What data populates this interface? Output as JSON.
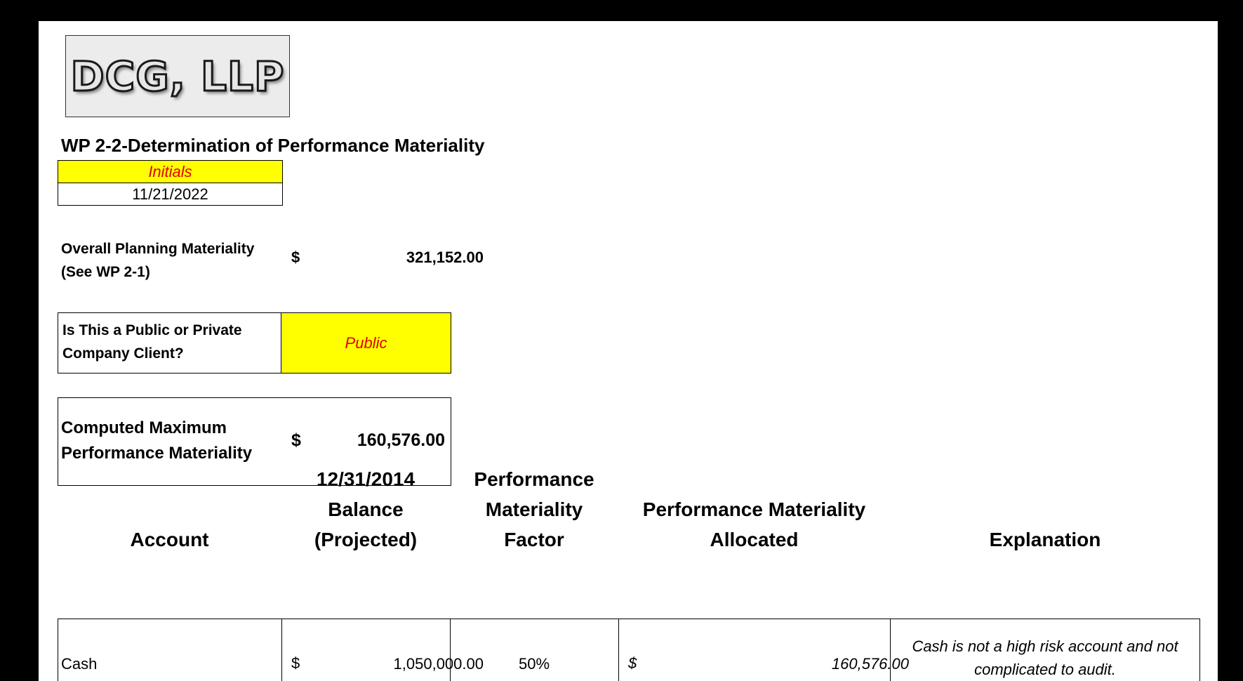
{
  "logo": {
    "text": "DCG, LLP"
  },
  "title": "WP 2-2-Determination of Performance Materiality",
  "signoff": {
    "initials_label": "Initials",
    "date": "11/21/2022"
  },
  "overall_planning_materiality": {
    "label_line1": "Overall Planning Materiality",
    "label_line2": "(See WP 2-1)",
    "currency": "$",
    "value": "321,152.00"
  },
  "client_type": {
    "label_line1": "Is This a Public or Private",
    "label_line2": "Company Client?",
    "value": "Public"
  },
  "computed_max": {
    "label_line1": "Computed Maximum",
    "label_line2": "Performance Materiality",
    "currency": "$",
    "value": "160,576.00"
  },
  "table": {
    "headers": {
      "account": "Account",
      "balance_line1": "12/31/2014",
      "balance_line2": "Balance",
      "balance_line3": "(Projected)",
      "factor_line1": "Performance",
      "factor_line2": "Materiality",
      "factor_line3": "Factor",
      "allocated_line1": "Performance Materiality",
      "allocated_line2": "Allocated",
      "explanation": "Explanation"
    },
    "rows": [
      {
        "account": "Cash",
        "currency": "$",
        "balance": "1,050,000.00",
        "factor": "50%",
        "allocated": "160,576.00",
        "explanation_line1": "Cash is not a high risk account and not",
        "explanation_line2": "complicated to audit."
      }
    ]
  },
  "colors": {
    "highlight": "#ffff00",
    "input_text": "#e00000",
    "frame": "#000000"
  }
}
